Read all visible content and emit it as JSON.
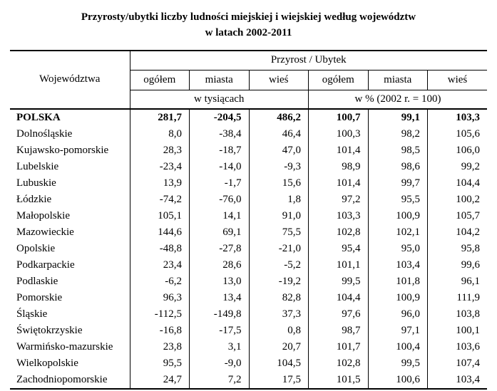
{
  "title": {
    "line1": "Przyrosty/ubytki liczby ludności miejskiej i wiejskiej według województw",
    "line2": "w latach 2002-2011"
  },
  "table": {
    "col_header_left": "Województwa",
    "group_header": "Przyrost / Ubytek",
    "subheaders": [
      "ogółem",
      "miasta",
      "wieś",
      "ogółem",
      "miasta",
      "wieś"
    ],
    "unit_headers": [
      "w tysiącach",
      "w % (2002 r. = 100)"
    ],
    "rows": [
      {
        "name": "POLSKA",
        "bold": true,
        "values": [
          "281,7",
          "-204,5",
          "486,2",
          "100,7",
          "99,1",
          "103,3"
        ]
      },
      {
        "name": "Dolnośląskie",
        "bold": false,
        "values": [
          "8,0",
          "-38,4",
          "46,4",
          "100,3",
          "98,2",
          "105,6"
        ]
      },
      {
        "name": "Kujawsko-pomorskie",
        "bold": false,
        "values": [
          "28,3",
          "-18,7",
          "47,0",
          "101,4",
          "98,5",
          "106,0"
        ]
      },
      {
        "name": "Lubelskie",
        "bold": false,
        "values": [
          "-23,4",
          "-14,0",
          "-9,3",
          "98,9",
          "98,6",
          "99,2"
        ]
      },
      {
        "name": "Lubuskie",
        "bold": false,
        "values": [
          "13,9",
          "-1,7",
          "15,6",
          "101,4",
          "99,7",
          "104,4"
        ]
      },
      {
        "name": "Łódzkie",
        "bold": false,
        "values": [
          "-74,2",
          "-76,0",
          "1,8",
          "97,2",
          "95,5",
          "100,2"
        ]
      },
      {
        "name": "Małopolskie",
        "bold": false,
        "values": [
          "105,1",
          "14,1",
          "91,0",
          "103,3",
          "100,9",
          "105,7"
        ]
      },
      {
        "name": "Mazowieckie",
        "bold": false,
        "values": [
          "144,6",
          "69,1",
          "75,5",
          "102,8",
          "102,1",
          "104,2"
        ]
      },
      {
        "name": "Opolskie",
        "bold": false,
        "values": [
          "-48,8",
          "-27,8",
          "-21,0",
          "95,4",
          "95,0",
          "95,8"
        ]
      },
      {
        "name": "Podkarpackie",
        "bold": false,
        "values": [
          "23,4",
          "28,6",
          "-5,2",
          "101,1",
          "103,4",
          "99,6"
        ]
      },
      {
        "name": "Podlaskie",
        "bold": false,
        "values": [
          "-6,2",
          "13,0",
          "-19,2",
          "99,5",
          "101,8",
          "96,1"
        ]
      },
      {
        "name": "Pomorskie",
        "bold": false,
        "values": [
          "96,3",
          "13,4",
          "82,8",
          "104,4",
          "100,9",
          "111,9"
        ]
      },
      {
        "name": "Śląskie",
        "bold": false,
        "values": [
          "-112,5",
          "-149,8",
          "37,3",
          "97,6",
          "96,0",
          "103,8"
        ]
      },
      {
        "name": "Świętokrzyskie",
        "bold": false,
        "values": [
          "-16,8",
          "-17,5",
          "0,8",
          "98,7",
          "97,1",
          "100,1"
        ]
      },
      {
        "name": "Warmińsko-mazurskie",
        "bold": false,
        "values": [
          "23,8",
          "3,1",
          "20,7",
          "101,7",
          "100,4",
          "103,6"
        ]
      },
      {
        "name": "Wielkopolskie",
        "bold": false,
        "values": [
          "95,5",
          "-9,0",
          "104,5",
          "102,8",
          "99,5",
          "107,4"
        ]
      },
      {
        "name": "Zachodniopomorskie",
        "bold": false,
        "values": [
          "24,7",
          "7,2",
          "17,5",
          "101,5",
          "100,6",
          "103,4"
        ]
      }
    ]
  }
}
